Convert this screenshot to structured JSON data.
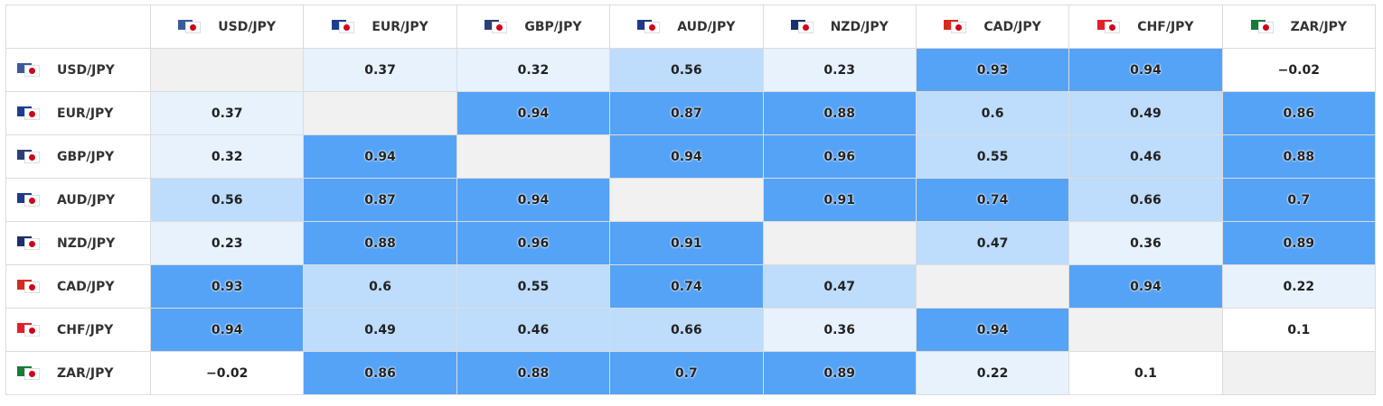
{
  "table": {
    "columns": [
      "USD/JPY",
      "EUR/JPY",
      "GBP/JPY",
      "AUD/JPY",
      "NZD/JPY",
      "CAD/JPY",
      "CHF/JPY",
      "ZAR/JPY"
    ],
    "rows": [
      {
        "label": "USD/JPY",
        "cells": [
          null,
          "0.37",
          "0.32",
          "0.56",
          "0.23",
          "0.93",
          "0.94",
          "−0.02"
        ]
      },
      {
        "label": "EUR/JPY",
        "cells": [
          "0.37",
          null,
          "0.94",
          "0.87",
          "0.88",
          "0.6",
          "0.49",
          "0.86"
        ]
      },
      {
        "label": "GBP/JPY",
        "cells": [
          "0.32",
          "0.94",
          null,
          "0.94",
          "0.96",
          "0.55",
          "0.46",
          "0.88"
        ]
      },
      {
        "label": "AUD/JPY",
        "cells": [
          "0.56",
          "0.87",
          "0.94",
          null,
          "0.91",
          "0.74",
          "0.66",
          "0.7"
        ]
      },
      {
        "label": "NZD/JPY",
        "cells": [
          "0.23",
          "0.88",
          "0.96",
          "0.91",
          null,
          "0.47",
          "0.36",
          "0.89"
        ]
      },
      {
        "label": "CAD/JPY",
        "cells": [
          "0.93",
          "0.6",
          "0.55",
          "0.74",
          "0.47",
          null,
          "0.94",
          "0.22"
        ]
      },
      {
        "label": "CHF/JPY",
        "cells": [
          "0.94",
          "0.49",
          "0.46",
          "0.66",
          "0.36",
          "0.94",
          null,
          "0.1"
        ]
      },
      {
        "label": "ZAR/JPY",
        "cells": [
          "−0.02",
          "0.86",
          "0.88",
          "0.7",
          "0.89",
          "0.22",
          "0.1",
          null
        ]
      }
    ]
  }
}
